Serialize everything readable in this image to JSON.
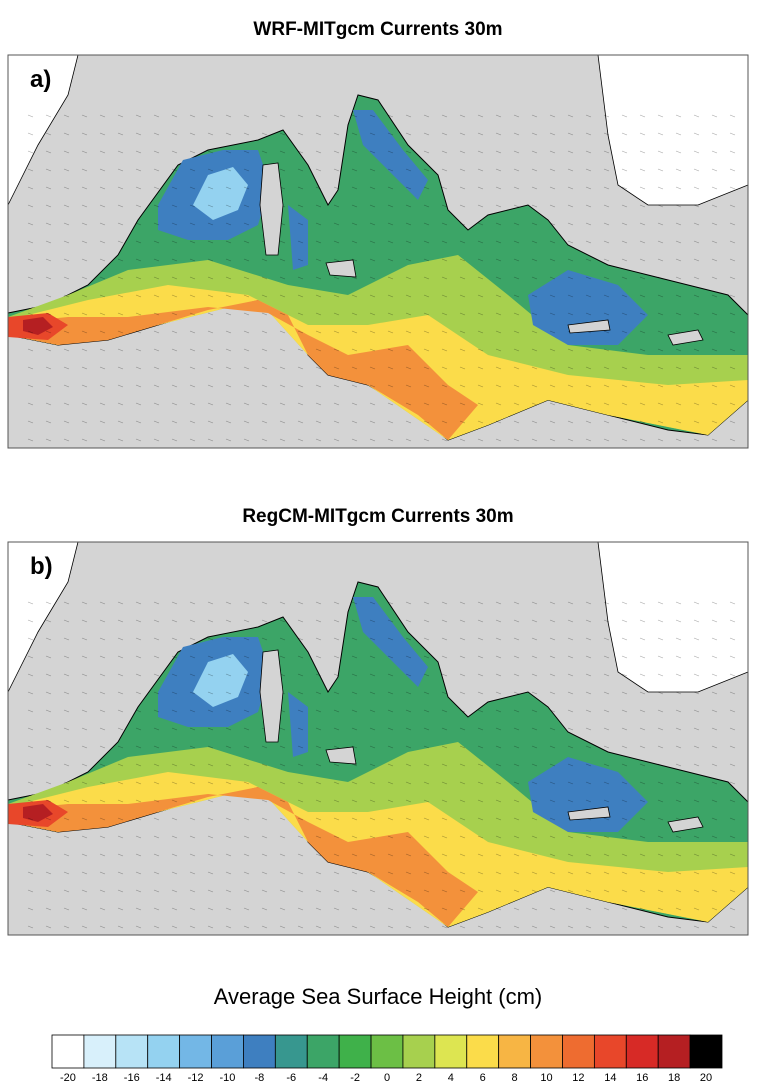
{
  "panels": [
    {
      "title": "WRF-MITgcm Currents 30m",
      "label": "a)"
    },
    {
      "title": "RegCM-MITgcm Currents 30m",
      "label": "b)"
    }
  ],
  "colorbar": {
    "label": "Average Sea Surface Height (cm)",
    "ticks": [
      -20,
      -18,
      -16,
      -14,
      -12,
      -10,
      -8,
      -6,
      -4,
      -2,
      0,
      2,
      4,
      6,
      8,
      10,
      12,
      14,
      16,
      18,
      20
    ],
    "colors": [
      "#ffffff",
      "#d8f0fb",
      "#b7e3f6",
      "#94d2f0",
      "#73b7e6",
      "#5a9fd8",
      "#3e7fc0",
      "#37978f",
      "#3ca567",
      "#3fb14a",
      "#6cbf45",
      "#a7d04e",
      "#dde551",
      "#fbdc4a",
      "#f7b544",
      "#f3913b",
      "#ee6c30",
      "#e8472a",
      "#d72a26",
      "#b51f22",
      "#000000"
    ]
  }
}
